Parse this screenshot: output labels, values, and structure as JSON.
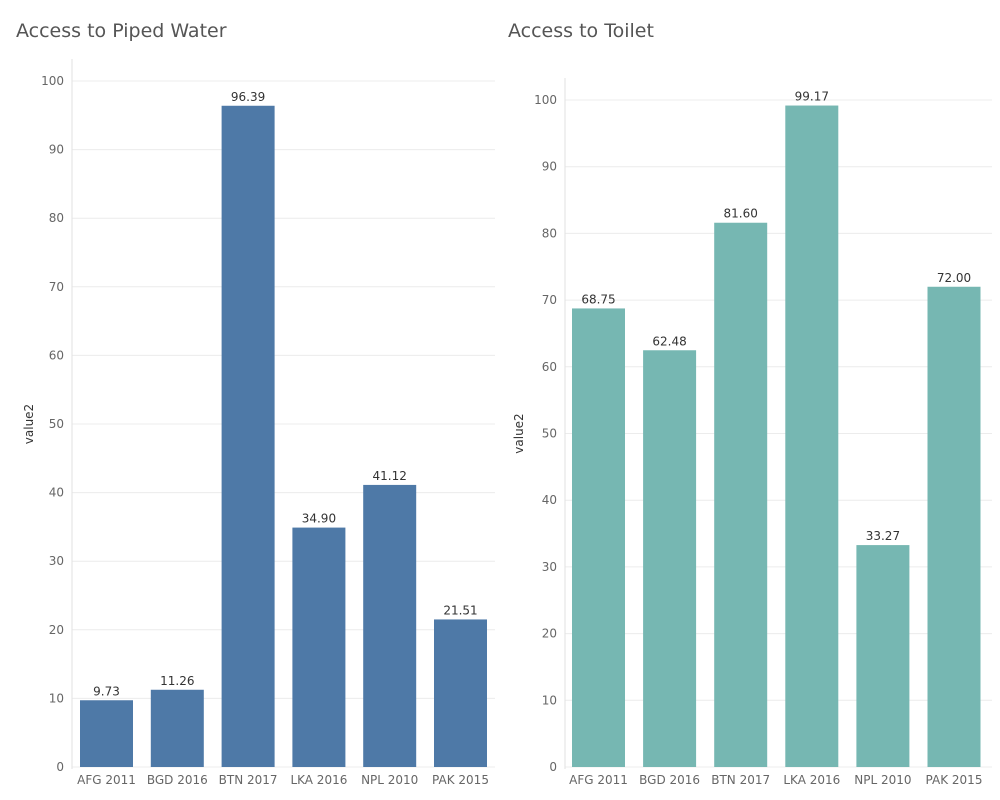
{
  "chart_data": [
    {
      "type": "bar",
      "title": "Access to Piped Water",
      "ylabel": "value2",
      "xlabel": "",
      "categories": [
        "AFG 2011",
        "BGD 2016",
        "BTN 2017",
        "LKA 2016",
        "NPL 2010",
        "PAK 2015"
      ],
      "values": [
        9.73,
        11.26,
        96.39,
        34.9,
        41.12,
        21.51
      ],
      "data_labels": [
        "9.73",
        "11.26",
        "96.39",
        "34.90",
        "41.12",
        "21.51"
      ],
      "ylim": [
        0,
        100
      ],
      "yticks": [
        0,
        10,
        20,
        30,
        40,
        50,
        60,
        70,
        80,
        90,
        100
      ],
      "grid": true,
      "color": "#4e79a7"
    },
    {
      "type": "bar",
      "title": "Access to Toilet",
      "ylabel": "value2",
      "xlabel": "",
      "categories": [
        "AFG 2011",
        "BGD 2016",
        "BTN 2017",
        "LKA 2016",
        "NPL 2010",
        "PAK 2015"
      ],
      "values": [
        68.75,
        62.48,
        81.6,
        99.17,
        33.27,
        72.0
      ],
      "data_labels": [
        "68.75",
        "62.48",
        "81.60",
        "99.17",
        "33.27",
        "72.00"
      ],
      "ylim": [
        0,
        100
      ],
      "yticks": [
        0,
        10,
        20,
        30,
        40,
        50,
        60,
        70,
        80,
        90,
        100
      ],
      "grid": true,
      "color": "#76b7b2"
    }
  ]
}
